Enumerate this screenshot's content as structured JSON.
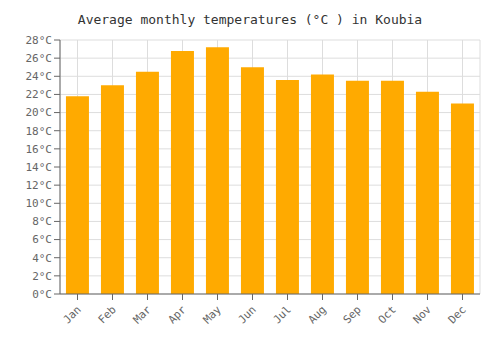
{
  "chart_data": {
    "type": "bar",
    "title": "Average monthly temperatures (°C ) in Koubia",
    "categories": [
      "Jan",
      "Feb",
      "Mar",
      "Apr",
      "May",
      "Jun",
      "Jul",
      "Aug",
      "Sep",
      "Oct",
      "Nov",
      "Dec"
    ],
    "values": [
      21.8,
      23.0,
      24.5,
      26.8,
      27.2,
      25.0,
      23.6,
      24.2,
      23.5,
      23.5,
      22.3,
      21.0
    ],
    "color": "#FFAA00",
    "ylim": [
      0,
      28
    ],
    "yticks": [
      {
        "value": 0,
        "label": "0°C"
      },
      {
        "value": 2,
        "label": "2°C"
      },
      {
        "value": 4,
        "label": "4°C"
      },
      {
        "value": 6,
        "label": "6°C"
      },
      {
        "value": 8,
        "label": "8°C"
      },
      {
        "value": 10,
        "label": "10°C"
      },
      {
        "value": 12,
        "label": "12°C"
      },
      {
        "value": 14,
        "label": "14°C"
      },
      {
        "value": 16,
        "label": "16°C"
      },
      {
        "value": 18,
        "label": "18°C"
      },
      {
        "value": 20,
        "label": "20°C"
      },
      {
        "value": 22,
        "label": "22°C"
      },
      {
        "value": 24,
        "label": "24°C"
      },
      {
        "value": 26,
        "label": "26°C"
      },
      {
        "value": 28,
        "label": "28°C"
      }
    ],
    "grid": true
  }
}
